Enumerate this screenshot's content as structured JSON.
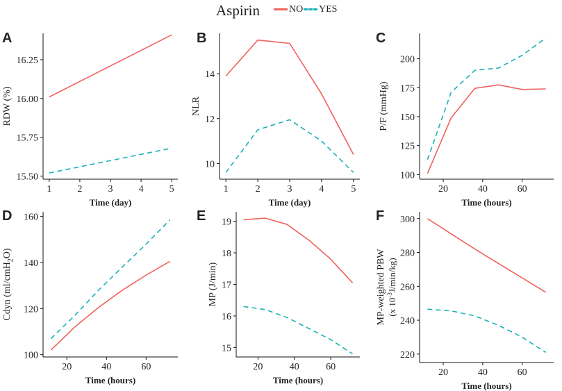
{
  "legend": {
    "title": "Aspirin",
    "items": [
      {
        "label": "NO",
        "color": "#f0625c",
        "style": "solid"
      },
      {
        "label": "YES",
        "color": "#19b2b7",
        "style": "dashed"
      }
    ]
  },
  "chart_data": [
    {
      "panel": "A",
      "type": "line",
      "title": "",
      "xlabel": "Time (day)",
      "ylabel": "RDW (%)",
      "xlim": [
        0.8,
        5.2
      ],
      "ylim": [
        15.48,
        16.42
      ],
      "xticks": [
        1,
        2,
        3,
        4,
        5
      ],
      "xticklabels": [
        "1",
        "2",
        "3",
        "4",
        "5"
      ],
      "yticks": [
        15.5,
        15.75,
        16.0,
        16.25
      ],
      "yticklabels": [
        "15.50",
        "15.75",
        "16.00",
        "16.25"
      ],
      "series": [
        {
          "name": "NO",
          "x": [
            1,
            5
          ],
          "values": [
            16.01,
            16.41
          ]
        },
        {
          "name": "YES",
          "x": [
            1,
            5
          ],
          "values": [
            15.52,
            15.68
          ]
        }
      ]
    },
    {
      "panel": "B",
      "type": "line",
      "title": "",
      "xlabel": "Time (day)",
      "ylabel": "NLR",
      "xlim": [
        0.8,
        5.2
      ],
      "ylim": [
        9.3,
        15.8
      ],
      "xticks": [
        1,
        2,
        3,
        4,
        5
      ],
      "xticklabels": [
        "1",
        "2",
        "3",
        "4",
        "5"
      ],
      "yticks": [
        10,
        12,
        14
      ],
      "yticklabels": [
        "10",
        "12",
        "14"
      ],
      "series": [
        {
          "name": "NO",
          "x": [
            1,
            2,
            3,
            4,
            5
          ],
          "values": [
            13.9,
            15.5,
            15.35,
            13.1,
            10.4
          ]
        },
        {
          "name": "YES",
          "x": [
            1,
            2,
            3,
            4,
            5
          ],
          "values": [
            9.6,
            11.5,
            11.95,
            11.0,
            9.6
          ]
        }
      ]
    },
    {
      "panel": "C",
      "type": "line",
      "title": "",
      "xlabel": "Time (hours)",
      "ylabel": "P/F  (mmHg)",
      "xlim": [
        8,
        76
      ],
      "ylim": [
        96,
        222
      ],
      "xticks": [
        20,
        40,
        60
      ],
      "xticklabels": [
        "20",
        "40",
        "60"
      ],
      "yticks": [
        100,
        125,
        150,
        175,
        200
      ],
      "yticklabels": [
        "100",
        "125",
        "150",
        "175",
        "200"
      ],
      "series": [
        {
          "name": "NO",
          "x": [
            12,
            24,
            36,
            48,
            60,
            72
          ],
          "values": [
            101,
            149,
            174.5,
            177.5,
            173.5,
            174
          ]
        },
        {
          "name": "YES",
          "x": [
            12,
            24,
            36,
            48,
            60,
            72
          ],
          "values": [
            113,
            171,
            190,
            192,
            203,
            218
          ]
        }
      ]
    },
    {
      "panel": "D",
      "type": "line",
      "title": "",
      "xlabel": "Time (hours)",
      "ylabel": "Cdyn (ml/cmH",
      "ylabel_sub": "2",
      "ylabel_end": "O)",
      "xlim": [
        8,
        76
      ],
      "ylim": [
        99,
        162
      ],
      "xticks": [
        20,
        40,
        60
      ],
      "xticklabels": [
        "20",
        "40",
        "60"
      ],
      "yticks": [
        100,
        120,
        140,
        160
      ],
      "yticklabels": [
        "100",
        "120",
        "140",
        "160"
      ],
      "series": [
        {
          "name": "NO",
          "x": [
            12,
            24,
            36,
            48,
            60,
            72
          ],
          "values": [
            102,
            112,
            120.5,
            128,
            134.5,
            140.5
          ]
        },
        {
          "name": "YES",
          "x": [
            12,
            24,
            36,
            48,
            60,
            72
          ],
          "values": [
            107,
            117,
            128,
            138,
            148,
            158.5
          ]
        }
      ]
    },
    {
      "panel": "E",
      "type": "line",
      "title": "",
      "xlabel": "Time (hours)",
      "ylabel": "MP (J/min)",
      "xlim": [
        8,
        76
      ],
      "ylim": [
        14.7,
        19.3
      ],
      "xticks": [
        20,
        40,
        60
      ],
      "xticklabels": [
        "20",
        "40",
        "60"
      ],
      "yticks": [
        15,
        16,
        17,
        18,
        19
      ],
      "yticklabels": [
        "15",
        "16",
        "17",
        "18",
        "19"
      ],
      "series": [
        {
          "name": "NO",
          "x": [
            12,
            24,
            36,
            48,
            60,
            72
          ],
          "values": [
            19.05,
            19.1,
            18.9,
            18.4,
            17.8,
            17.05
          ]
        },
        {
          "name": "YES",
          "x": [
            12,
            24,
            36,
            48,
            60,
            72
          ],
          "values": [
            16.3,
            16.2,
            15.95,
            15.6,
            15.25,
            14.8
          ]
        }
      ]
    },
    {
      "panel": "F",
      "type": "line",
      "title": "",
      "xlabel": "Time (hours)",
      "ylabel": "MP-weighted PBW",
      "ylabel2": "(x 10",
      "ylabel2_sup": "-3",
      "ylabel2_end": "J/min/kg)",
      "xlim": [
        8,
        76
      ],
      "ylim": [
        215,
        304
      ],
      "xticks": [
        20,
        40,
        60
      ],
      "xticklabels": [
        "20",
        "40",
        "60"
      ],
      "yticks": [
        220,
        240,
        260,
        280,
        300
      ],
      "yticklabels": [
        "220",
        "240",
        "260",
        "280",
        "300"
      ],
      "series": [
        {
          "name": "NO",
          "x": [
            12,
            24,
            36,
            48,
            60,
            72
          ],
          "values": [
            300,
            291,
            282,
            273.5,
            265,
            256.5
          ]
        },
        {
          "name": "YES",
          "x": [
            12,
            24,
            36,
            48,
            60,
            72
          ],
          "values": [
            246.5,
            245.5,
            242.5,
            237,
            230,
            221
          ]
        }
      ]
    }
  ]
}
